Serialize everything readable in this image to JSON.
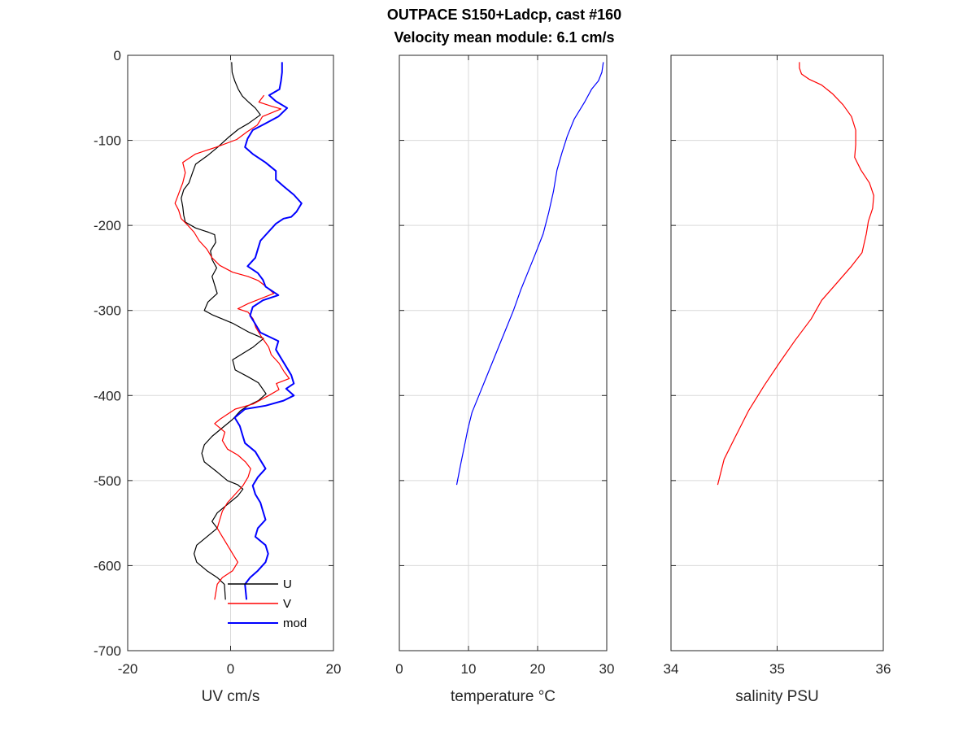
{
  "title_line1": "OUTPACE S150+Ladcp, cast #160",
  "title_line2": "Velocity mean module:  6.1 cm/s",
  "chart_data": [
    {
      "type": "line",
      "xlabel": "UV cm/s",
      "xlim": [
        -20,
        20
      ],
      "ylim": [
        -700,
        0
      ],
      "xticks": [
        -20,
        0,
        20
      ],
      "yticks": [
        0,
        -100,
        -200,
        -300,
        -400,
        -500,
        -600,
        -700
      ],
      "grid": true,
      "legend_position": "bottom-right",
      "series": [
        {
          "name": "U",
          "color": "#000000",
          "points": [
            [
              0.2,
              -8
            ],
            [
              0.3,
              -20
            ],
            [
              0.8,
              -30
            ],
            [
              1.5,
              -40
            ],
            [
              2.3,
              -48
            ],
            [
              3.5,
              -55
            ],
            [
              4.8,
              -62
            ],
            [
              5.8,
              -70
            ],
            [
              3.5,
              -80
            ],
            [
              1.5,
              -87
            ],
            [
              -0.5,
              -97
            ],
            [
              -2.5,
              -108
            ],
            [
              -4.5,
              -118
            ],
            [
              -6.8,
              -128
            ],
            [
              -7.4,
              -138
            ],
            [
              -8.1,
              -150
            ],
            [
              -9.1,
              -158
            ],
            [
              -9.6,
              -168
            ],
            [
              -9.3,
              -178
            ],
            [
              -9.1,
              -188
            ],
            [
              -8.8,
              -196
            ],
            [
              -6.8,
              -203
            ],
            [
              -4.3,
              -208
            ],
            [
              -3.1,
              -211
            ],
            [
              -2.9,
              -220
            ],
            [
              -3.9,
              -230
            ],
            [
              -3.6,
              -240
            ],
            [
              -2.7,
              -250
            ],
            [
              -3.6,
              -260
            ],
            [
              -3.1,
              -270
            ],
            [
              -2.6,
              -280
            ],
            [
              -4.4,
              -290
            ],
            [
              -5.1,
              -300
            ],
            [
              -3.6,
              -305
            ],
            [
              -1.6,
              -310
            ],
            [
              0.4,
              -315
            ],
            [
              3.4,
              -325
            ],
            [
              6.4,
              -333
            ],
            [
              4.4,
              -343
            ],
            [
              0.4,
              -358
            ],
            [
              0.9,
              -370
            ],
            [
              3.4,
              -378
            ],
            [
              5.4,
              -385
            ],
            [
              6.9,
              -398
            ],
            [
              5.4,
              -406
            ],
            [
              3.4,
              -412
            ],
            [
              1.9,
              -418
            ],
            [
              0.4,
              -428
            ],
            [
              -1.6,
              -438
            ],
            [
              -3.6,
              -448
            ],
            [
              -5.1,
              -458
            ],
            [
              -5.6,
              -468
            ],
            [
              -5.1,
              -478
            ],
            [
              -2.6,
              -490
            ],
            [
              -0.6,
              -500
            ],
            [
              1.4,
              -505
            ],
            [
              2.4,
              -510
            ],
            [
              1.4,
              -518
            ],
            [
              -0.6,
              -528
            ],
            [
              -2.6,
              -538
            ],
            [
              -3.6,
              -548
            ],
            [
              -2.6,
              -556
            ],
            [
              -4.6,
              -566
            ],
            [
              -6.6,
              -576
            ],
            [
              -7.1,
              -586
            ],
            [
              -6.6,
              -596
            ],
            [
              -4.6,
              -606
            ],
            [
              -2.6,
              -614
            ],
            [
              -1.2,
              -622
            ],
            [
              -1.0,
              -640
            ]
          ]
        },
        {
          "name": "V",
          "color": "#ff0000",
          "points": [
            [
              6.5,
              -47
            ],
            [
              5.5,
              -55
            ],
            [
              8.0,
              -60
            ],
            [
              9.8,
              -63
            ],
            [
              6.2,
              -72
            ],
            [
              5.2,
              -82
            ],
            [
              3.2,
              -90
            ],
            [
              1.2,
              -99
            ],
            [
              -2.8,
              -108
            ],
            [
              -6.8,
              -116
            ],
            [
              -9.3,
              -126
            ],
            [
              -8.8,
              -138
            ],
            [
              -9.3,
              -150
            ],
            [
              -9.8,
              -158
            ],
            [
              -10.3,
              -166
            ],
            [
              -10.8,
              -174
            ],
            [
              -10.1,
              -182
            ],
            [
              -9.6,
              -192
            ],
            [
              -8.3,
              -200
            ],
            [
              -7.1,
              -208
            ],
            [
              -6.1,
              -218
            ],
            [
              -4.6,
              -228
            ],
            [
              -3.6,
              -238
            ],
            [
              -2.1,
              -247
            ],
            [
              0.4,
              -255
            ],
            [
              3.4,
              -260
            ],
            [
              5.4,
              -265
            ],
            [
              6.9,
              -272
            ],
            [
              8.4,
              -280
            ],
            [
              5.9,
              -286
            ],
            [
              3.4,
              -292
            ],
            [
              1.4,
              -298
            ],
            [
              3.4,
              -302
            ],
            [
              4.4,
              -310
            ],
            [
              4.9,
              -320
            ],
            [
              5.9,
              -330
            ],
            [
              7.4,
              -343
            ],
            [
              7.9,
              -352
            ],
            [
              9.4,
              -362
            ],
            [
              10.4,
              -372
            ],
            [
              11.4,
              -380
            ],
            [
              8.9,
              -386
            ],
            [
              9.4,
              -393
            ],
            [
              7.4,
              -400
            ],
            [
              4.4,
              -410
            ],
            [
              0.9,
              -416
            ],
            [
              -0.6,
              -422
            ],
            [
              -2.1,
              -428
            ],
            [
              -3.1,
              -433
            ],
            [
              -1.1,
              -443
            ],
            [
              -1.6,
              -453
            ],
            [
              -0.6,
              -463
            ],
            [
              1.4,
              -470
            ],
            [
              2.9,
              -478
            ],
            [
              3.9,
              -486
            ],
            [
              3.4,
              -496
            ],
            [
              2.4,
              -506
            ],
            [
              0.9,
              -516
            ],
            [
              -0.6,
              -526
            ],
            [
              -1.6,
              -536
            ],
            [
              -2.1,
              -546
            ],
            [
              -2.6,
              -556
            ],
            [
              -1.6,
              -566
            ],
            [
              -0.6,
              -576
            ],
            [
              0.4,
              -586
            ],
            [
              1.4,
              -596
            ],
            [
              0.4,
              -606
            ],
            [
              -1.6,
              -614
            ],
            [
              -2.6,
              -622
            ],
            [
              -3.1,
              -640
            ]
          ]
        },
        {
          "name": "mod",
          "color": "#0000ff",
          "points": [
            [
              10.0,
              -8
            ],
            [
              10.0,
              -20
            ],
            [
              9.8,
              -30
            ],
            [
              9.5,
              -40
            ],
            [
              7.5,
              -47
            ],
            [
              8.8,
              -54
            ],
            [
              11.0,
              -62
            ],
            [
              9.3,
              -72
            ],
            [
              6.8,
              -80
            ],
            [
              4.3,
              -88
            ],
            [
              3.3,
              -98
            ],
            [
              2.8,
              -108
            ],
            [
              4.3,
              -116
            ],
            [
              6.8,
              -126
            ],
            [
              8.8,
              -136
            ],
            [
              8.8,
              -146
            ],
            [
              10.3,
              -154
            ],
            [
              12.3,
              -164
            ],
            [
              13.8,
              -174
            ],
            [
              12.8,
              -184
            ],
            [
              11.8,
              -190
            ],
            [
              10.3,
              -192
            ],
            [
              8.8,
              -198
            ],
            [
              7.3,
              -208
            ],
            [
              5.8,
              -218
            ],
            [
              5.3,
              -228
            ],
            [
              4.8,
              -238
            ],
            [
              3.3,
              -248
            ],
            [
              5.3,
              -256
            ],
            [
              6.3,
              -264
            ],
            [
              6.8,
              -272
            ],
            [
              9.3,
              -282
            ],
            [
              6.3,
              -288
            ],
            [
              4.3,
              -296
            ],
            [
              3.8,
              -306
            ],
            [
              4.8,
              -316
            ],
            [
              5.8,
              -326
            ],
            [
              9.3,
              -336
            ],
            [
              8.8,
              -346
            ],
            [
              9.8,
              -356
            ],
            [
              10.8,
              -366
            ],
            [
              11.8,
              -376
            ],
            [
              12.3,
              -386
            ],
            [
              10.8,
              -392
            ],
            [
              12.3,
              -400
            ],
            [
              10.3,
              -406
            ],
            [
              6.8,
              -412
            ],
            [
              2.8,
              -416
            ],
            [
              0.8,
              -426
            ],
            [
              1.8,
              -436
            ],
            [
              2.3,
              -446
            ],
            [
              2.8,
              -456
            ],
            [
              4.8,
              -466
            ],
            [
              5.8,
              -476
            ],
            [
              6.8,
              -486
            ],
            [
              5.3,
              -496
            ],
            [
              4.3,
              -506
            ],
            [
              4.8,
              -516
            ],
            [
              5.8,
              -526
            ],
            [
              6.3,
              -536
            ],
            [
              6.8,
              -546
            ],
            [
              5.3,
              -556
            ],
            [
              4.8,
              -566
            ],
            [
              6.8,
              -576
            ],
            [
              7.3,
              -586
            ],
            [
              6.8,
              -596
            ],
            [
              5.3,
              -606
            ],
            [
              3.8,
              -614
            ],
            [
              2.8,
              -622
            ],
            [
              3.1,
              -640
            ]
          ]
        }
      ]
    },
    {
      "type": "line",
      "xlabel": "temperature °C",
      "xlim": [
        0,
        30
      ],
      "ylim": [
        -700,
        0
      ],
      "xticks": [
        0,
        10,
        20,
        30
      ],
      "grid": true,
      "series": [
        {
          "name": "",
          "color": "#0000ff",
          "points": [
            [
              29.5,
              -8
            ],
            [
              29.3,
              -20
            ],
            [
              28.8,
              -30
            ],
            [
              27.8,
              -40
            ],
            [
              26.8,
              -55
            ],
            [
              25.3,
              -75
            ],
            [
              24.3,
              -95
            ],
            [
              23.5,
              -115
            ],
            [
              22.8,
              -135
            ],
            [
              22.3,
              -160
            ],
            [
              21.6,
              -185
            ],
            [
              20.8,
              -210
            ],
            [
              19.6,
              -235
            ],
            [
              18.6,
              -255
            ],
            [
              17.6,
              -275
            ],
            [
              16.5,
              -300
            ],
            [
              15.5,
              -320
            ],
            [
              14.5,
              -340
            ],
            [
              13.5,
              -360
            ],
            [
              12.5,
              -380
            ],
            [
              11.5,
              -400
            ],
            [
              10.5,
              -420
            ],
            [
              9.9,
              -440
            ],
            [
              9.4,
              -460
            ],
            [
              8.9,
              -480
            ],
            [
              8.3,
              -505
            ]
          ]
        }
      ]
    },
    {
      "type": "line",
      "xlabel": "salinity PSU",
      "xlim": [
        34,
        36
      ],
      "ylim": [
        -700,
        0
      ],
      "xticks": [
        34,
        35,
        36
      ],
      "grid": true,
      "series": [
        {
          "name": "",
          "color": "#ff0000",
          "points": [
            [
              35.21,
              -8
            ],
            [
              35.21,
              -15
            ],
            [
              35.23,
              -22
            ],
            [
              35.3,
              -28
            ],
            [
              35.42,
              -35
            ],
            [
              35.52,
              -45
            ],
            [
              35.62,
              -58
            ],
            [
              35.7,
              -72
            ],
            [
              35.74,
              -88
            ],
            [
              35.74,
              -105
            ],
            [
              35.73,
              -120
            ],
            [
              35.79,
              -135
            ],
            [
              35.87,
              -150
            ],
            [
              35.91,
              -165
            ],
            [
              35.9,
              -180
            ],
            [
              35.86,
              -195
            ],
            [
              35.84,
              -210
            ],
            [
              35.8,
              -232
            ],
            [
              35.7,
              -248
            ],
            [
              35.56,
              -268
            ],
            [
              35.42,
              -288
            ],
            [
              35.32,
              -310
            ],
            [
              35.17,
              -335
            ],
            [
              35.03,
              -360
            ],
            [
              34.88,
              -388
            ],
            [
              34.73,
              -418
            ],
            [
              34.6,
              -450
            ],
            [
              34.5,
              -475
            ],
            [
              34.44,
              -505
            ]
          ]
        }
      ]
    }
  ]
}
